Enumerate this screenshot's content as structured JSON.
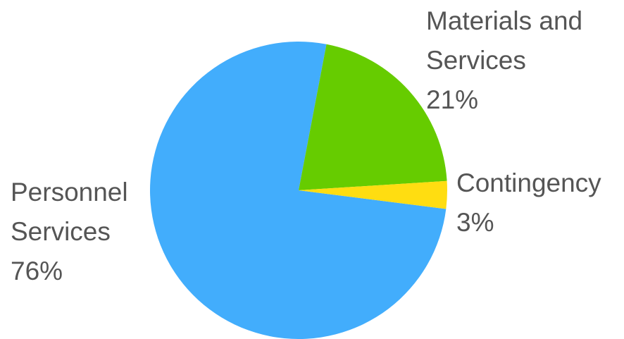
{
  "chart_data": {
    "type": "pie",
    "categories": [
      "Personnel Services",
      "Materials and Services",
      "Contingency"
    ],
    "values": [
      76,
      21,
      3
    ],
    "value_labels": [
      "76%",
      "21%",
      "3%"
    ],
    "colors": [
      "#42adfc",
      "#66cc00",
      "#ffdd11"
    ]
  }
}
